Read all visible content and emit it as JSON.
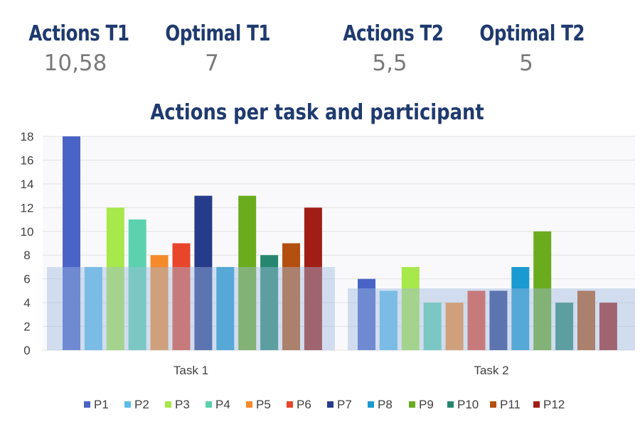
{
  "stats": [
    {
      "label": "Actions T1",
      "value": "10,58"
    },
    {
      "label": "Optimal T1",
      "value": "7"
    },
    {
      "label": "Actions T2",
      "value": "5,5"
    },
    {
      "label": "Optimal T2",
      "value": "5"
    }
  ],
  "chart_data": {
    "type": "bar",
    "title": "Actions per task and participant",
    "categories": [
      "Task 1",
      "Task 2"
    ],
    "ylim": [
      0,
      18
    ],
    "yticks": [
      "0",
      "2",
      "4",
      "6",
      "8",
      "10",
      "12",
      "14",
      "16",
      "18"
    ],
    "grid": true,
    "legend_position": "bottom",
    "series": [
      {
        "name": "P1",
        "color": "#4a63c6",
        "values": [
          18,
          6
        ]
      },
      {
        "name": "P2",
        "color": "#5bbde9",
        "values": [
          7,
          5
        ]
      },
      {
        "name": "P3",
        "color": "#a7e84a",
        "values": [
          12,
          7
        ]
      },
      {
        "name": "P4",
        "color": "#5cd1ad",
        "values": [
          11,
          4
        ]
      },
      {
        "name": "P5",
        "color": "#f58a2a",
        "values": [
          8,
          4
        ]
      },
      {
        "name": "P6",
        "color": "#e8452a",
        "values": [
          9,
          5
        ]
      },
      {
        "name": "P7",
        "color": "#263c8a",
        "values": [
          13,
          5
        ]
      },
      {
        "name": "P8",
        "color": "#1a9ad0",
        "values": [
          7,
          7
        ]
      },
      {
        "name": "P9",
        "color": "#6aac1e",
        "values": [
          13,
          10
        ]
      },
      {
        "name": "P10",
        "color": "#27876e",
        "values": [
          8,
          4
        ]
      },
      {
        "name": "P11",
        "color": "#b4500f",
        "values": [
          9,
          5
        ]
      },
      {
        "name": "P12",
        "color": "#a01e16",
        "values": [
          12,
          4
        ]
      }
    ],
    "optimal_bands": [
      7,
      5.2
    ],
    "optimal_band_color": "#9fbbe0"
  }
}
